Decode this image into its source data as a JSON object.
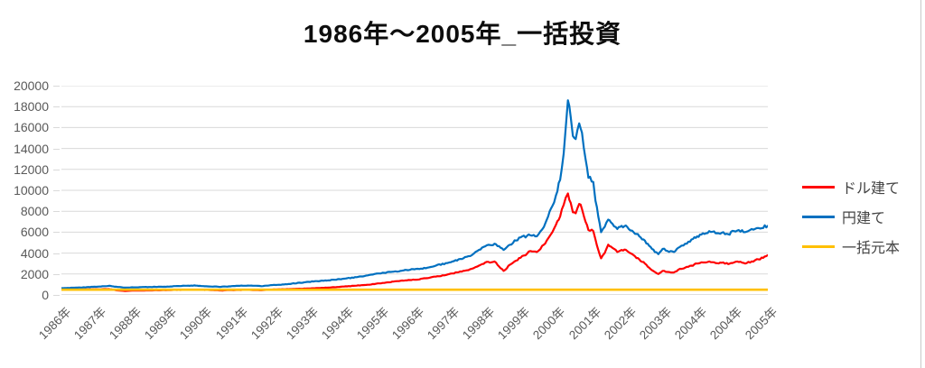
{
  "chart_data": {
    "type": "line",
    "title": "1986年～2005年_一括投資",
    "xlabel": "",
    "ylabel": "",
    "x_unit": "category ticks, one per year label below (index 0-20)",
    "ylim": [
      0,
      20000
    ],
    "y_ticks": [
      0,
      2000,
      4000,
      6000,
      8000,
      10000,
      12000,
      14000,
      16000,
      18000,
      20000
    ],
    "categories": [
      "1986年",
      "1987年",
      "1988年",
      "1989年",
      "1990年",
      "1991年",
      "1992年",
      "1993年",
      "1994年",
      "1995年",
      "1996年",
      "1997年",
      "1998年",
      "1999年",
      "2000年",
      "2001年",
      "2002年",
      "2003年",
      "2004年",
      "2004年",
      "2005年"
    ],
    "grid": "horizontal",
    "legend_position": "right",
    "colors": {
      "grid": "#d9d9d9",
      "axis_text": "#595959",
      "zero_axis": "#bfbfbf"
    },
    "series": [
      {
        "name": "ドル建て",
        "color": "#ff0000",
        "points": [
          [
            0,
            500
          ],
          [
            0.46,
            520
          ],
          [
            0.98,
            540
          ],
          [
            1.34,
            560
          ],
          [
            1.6,
            430
          ],
          [
            1.8,
            380
          ],
          [
            2,
            420
          ],
          [
            2.48,
            430
          ],
          [
            3,
            460
          ],
          [
            3.5,
            490
          ],
          [
            3.8,
            510
          ],
          [
            4.14,
            480
          ],
          [
            4.52,
            430
          ],
          [
            5,
            470
          ],
          [
            5.28,
            490
          ],
          [
            5.66,
            450
          ],
          [
            5.98,
            520
          ],
          [
            6.3,
            540
          ],
          [
            7,
            620
          ],
          [
            7.56,
            700
          ],
          [
            8,
            800
          ],
          [
            8.58,
            950
          ],
          [
            9,
            1100
          ],
          [
            9.6,
            1350
          ],
          [
            10,
            1450
          ],
          [
            10.36,
            1600
          ],
          [
            10.6,
            1750
          ],
          [
            10.98,
            2000
          ],
          [
            11.38,
            2300
          ],
          [
            11.62,
            2500
          ],
          [
            11.82,
            2800
          ],
          [
            12,
            3100
          ],
          [
            12.26,
            3200
          ],
          [
            12.52,
            2300
          ],
          [
            12.7,
            2900
          ],
          [
            13,
            3550
          ],
          [
            13.28,
            4200
          ],
          [
            13.46,
            4100
          ],
          [
            13.66,
            4800
          ],
          [
            13.78,
            5400
          ],
          [
            13.9,
            6000
          ],
          [
            14,
            6700
          ],
          [
            14.12,
            7500
          ],
          [
            14.22,
            8600
          ],
          [
            14.28,
            9300
          ],
          [
            14.34,
            9700
          ],
          [
            14.42,
            8800
          ],
          [
            14.48,
            7900
          ],
          [
            14.56,
            7800
          ],
          [
            14.66,
            8700
          ],
          [
            14.74,
            8200
          ],
          [
            14.84,
            7000
          ],
          [
            14.92,
            6200
          ],
          [
            15.06,
            6100
          ],
          [
            15.12,
            5300
          ],
          [
            15.2,
            4300
          ],
          [
            15.28,
            3500
          ],
          [
            15.38,
            4000
          ],
          [
            15.48,
            4800
          ],
          [
            15.6,
            4500
          ],
          [
            15.74,
            4100
          ],
          [
            15.86,
            4300
          ],
          [
            16.02,
            4200
          ],
          [
            16.2,
            3800
          ],
          [
            16.36,
            3400
          ],
          [
            16.52,
            3000
          ],
          [
            16.64,
            2600
          ],
          [
            16.8,
            2200
          ],
          [
            16.9,
            2000
          ],
          [
            17.02,
            2300
          ],
          [
            17.16,
            2200
          ],
          [
            17.34,
            2150
          ],
          [
            17.46,
            2400
          ],
          [
            17.66,
            2600
          ],
          [
            17.84,
            2800
          ],
          [
            18,
            3000
          ],
          [
            18.16,
            3100
          ],
          [
            18.34,
            3200
          ],
          [
            18.52,
            3050
          ],
          [
            18.74,
            3100
          ],
          [
            18.88,
            2950
          ],
          [
            19.04,
            3100
          ],
          [
            19.18,
            3150
          ],
          [
            19.36,
            3000
          ],
          [
            19.54,
            3200
          ],
          [
            19.74,
            3400
          ],
          [
            19.95,
            3700
          ],
          [
            20,
            3800
          ]
        ]
      },
      {
        "name": "円建て",
        "color": "#0070c0",
        "points": [
          [
            0,
            650
          ],
          [
            0.46,
            700
          ],
          [
            0.98,
            780
          ],
          [
            1.34,
            870
          ],
          [
            1.6,
            760
          ],
          [
            1.8,
            700
          ],
          [
            2,
            730
          ],
          [
            2.48,
            760
          ],
          [
            3,
            800
          ],
          [
            3.5,
            880
          ],
          [
            3.8,
            900
          ],
          [
            4.14,
            820
          ],
          [
            4.52,
            780
          ],
          [
            5,
            870
          ],
          [
            5.28,
            900
          ],
          [
            5.66,
            840
          ],
          [
            5.98,
            950
          ],
          [
            6.3,
            1000
          ],
          [
            7,
            1250
          ],
          [
            7.56,
            1400
          ],
          [
            8,
            1550
          ],
          [
            8.58,
            1800
          ],
          [
            9,
            2050
          ],
          [
            9.6,
            2300
          ],
          [
            10,
            2450
          ],
          [
            10.36,
            2600
          ],
          [
            10.6,
            2800
          ],
          [
            10.98,
            3100
          ],
          [
            11.38,
            3500
          ],
          [
            11.62,
            3800
          ],
          [
            11.82,
            4300
          ],
          [
            12,
            4650
          ],
          [
            12.26,
            4900
          ],
          [
            12.52,
            4300
          ],
          [
            12.7,
            4800
          ],
          [
            13,
            5500
          ],
          [
            13.28,
            5700
          ],
          [
            13.46,
            5600
          ],
          [
            13.66,
            6500
          ],
          [
            13.78,
            7500
          ],
          [
            13.9,
            8500
          ],
          [
            14,
            9500
          ],
          [
            14.12,
            11000
          ],
          [
            14.22,
            13500
          ],
          [
            14.28,
            16000
          ],
          [
            14.34,
            18600
          ],
          [
            14.42,
            17000
          ],
          [
            14.48,
            15200
          ],
          [
            14.56,
            14900
          ],
          [
            14.66,
            16400
          ],
          [
            14.74,
            15500
          ],
          [
            14.84,
            13000
          ],
          [
            14.92,
            11200
          ],
          [
            15.06,
            10800
          ],
          [
            15.12,
            9000
          ],
          [
            15.2,
            7500
          ],
          [
            15.28,
            6000
          ],
          [
            15.38,
            6500
          ],
          [
            15.48,
            7200
          ],
          [
            15.6,
            6800
          ],
          [
            15.74,
            6300
          ],
          [
            15.86,
            6600
          ],
          [
            16.02,
            6500
          ],
          [
            16.2,
            6000
          ],
          [
            16.36,
            5600
          ],
          [
            16.52,
            5200
          ],
          [
            16.64,
            4700
          ],
          [
            16.8,
            4100
          ],
          [
            16.9,
            3900
          ],
          [
            17.02,
            4400
          ],
          [
            17.16,
            4200
          ],
          [
            17.34,
            4100
          ],
          [
            17.46,
            4500
          ],
          [
            17.66,
            4900
          ],
          [
            17.84,
            5300
          ],
          [
            18,
            5600
          ],
          [
            18.16,
            5900
          ],
          [
            18.34,
            6100
          ],
          [
            18.52,
            5900
          ],
          [
            18.74,
            6000
          ],
          [
            18.88,
            5800
          ],
          [
            19.04,
            6100
          ],
          [
            19.18,
            6200
          ],
          [
            19.36,
            6000
          ],
          [
            19.54,
            6300
          ],
          [
            19.74,
            6400
          ],
          [
            20,
            6600
          ]
        ]
      },
      {
        "name": "一括元本",
        "color": "#ffc000",
        "points": [
          [
            0,
            500
          ],
          [
            20,
            500
          ]
        ]
      }
    ]
  }
}
